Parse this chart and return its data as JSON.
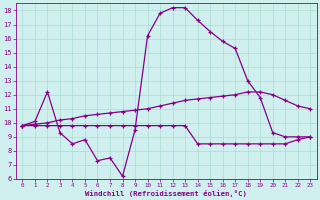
{
  "xlabel": "Windchill (Refroidissement éolien,°C)",
  "xlim": [
    -0.5,
    23.5
  ],
  "ylim": [
    6,
    18.5
  ],
  "xticks": [
    0,
    1,
    2,
    3,
    4,
    5,
    6,
    7,
    8,
    9,
    10,
    11,
    12,
    13,
    14,
    15,
    16,
    17,
    18,
    19,
    20,
    21,
    22,
    23
  ],
  "yticks": [
    6,
    7,
    8,
    9,
    10,
    11,
    12,
    13,
    14,
    15,
    16,
    17,
    18
  ],
  "bg_color": "#cff0ee",
  "line_color": "#880088",
  "grid_color": "#aaddcc",
  "line1_x": [
    0,
    1,
    2,
    3,
    4,
    5,
    6,
    7,
    8,
    9,
    10,
    11,
    12,
    13,
    14,
    15,
    16,
    17,
    18,
    19,
    20,
    21,
    22,
    23
  ],
  "line1_y": [
    9.8,
    10.1,
    12.2,
    9.3,
    8.5,
    8.8,
    7.3,
    7.5,
    6.2,
    9.5,
    16.2,
    17.8,
    18.2,
    18.2,
    17.3,
    16.5,
    15.8,
    15.3,
    13.0,
    11.8,
    9.3,
    9.0,
    9.0,
    9.0
  ],
  "line2_x": [
    0,
    1,
    2,
    3,
    4,
    5,
    6,
    7,
    8,
    9,
    10,
    11,
    12,
    13,
    14,
    15,
    16,
    17,
    18,
    19,
    20,
    21,
    22,
    23
  ],
  "line2_y": [
    9.8,
    9.9,
    10.0,
    10.2,
    10.3,
    10.5,
    10.6,
    10.7,
    10.8,
    10.9,
    11.0,
    11.2,
    11.4,
    11.6,
    11.7,
    11.8,
    11.9,
    12.0,
    12.2,
    12.2,
    12.0,
    11.6,
    11.2,
    11.0
  ],
  "line3_x": [
    0,
    1,
    2,
    3,
    4,
    5,
    6,
    7,
    8,
    9,
    10,
    11,
    12,
    13,
    14,
    15,
    16,
    17,
    18,
    19,
    20,
    21,
    22,
    23
  ],
  "line3_y": [
    9.8,
    9.8,
    9.8,
    9.8,
    9.8,
    9.8,
    9.8,
    9.8,
    9.8,
    9.8,
    9.8,
    9.8,
    9.8,
    9.8,
    8.5,
    8.5,
    8.5,
    8.5,
    8.5,
    8.5,
    8.5,
    8.5,
    8.8,
    9.0
  ]
}
